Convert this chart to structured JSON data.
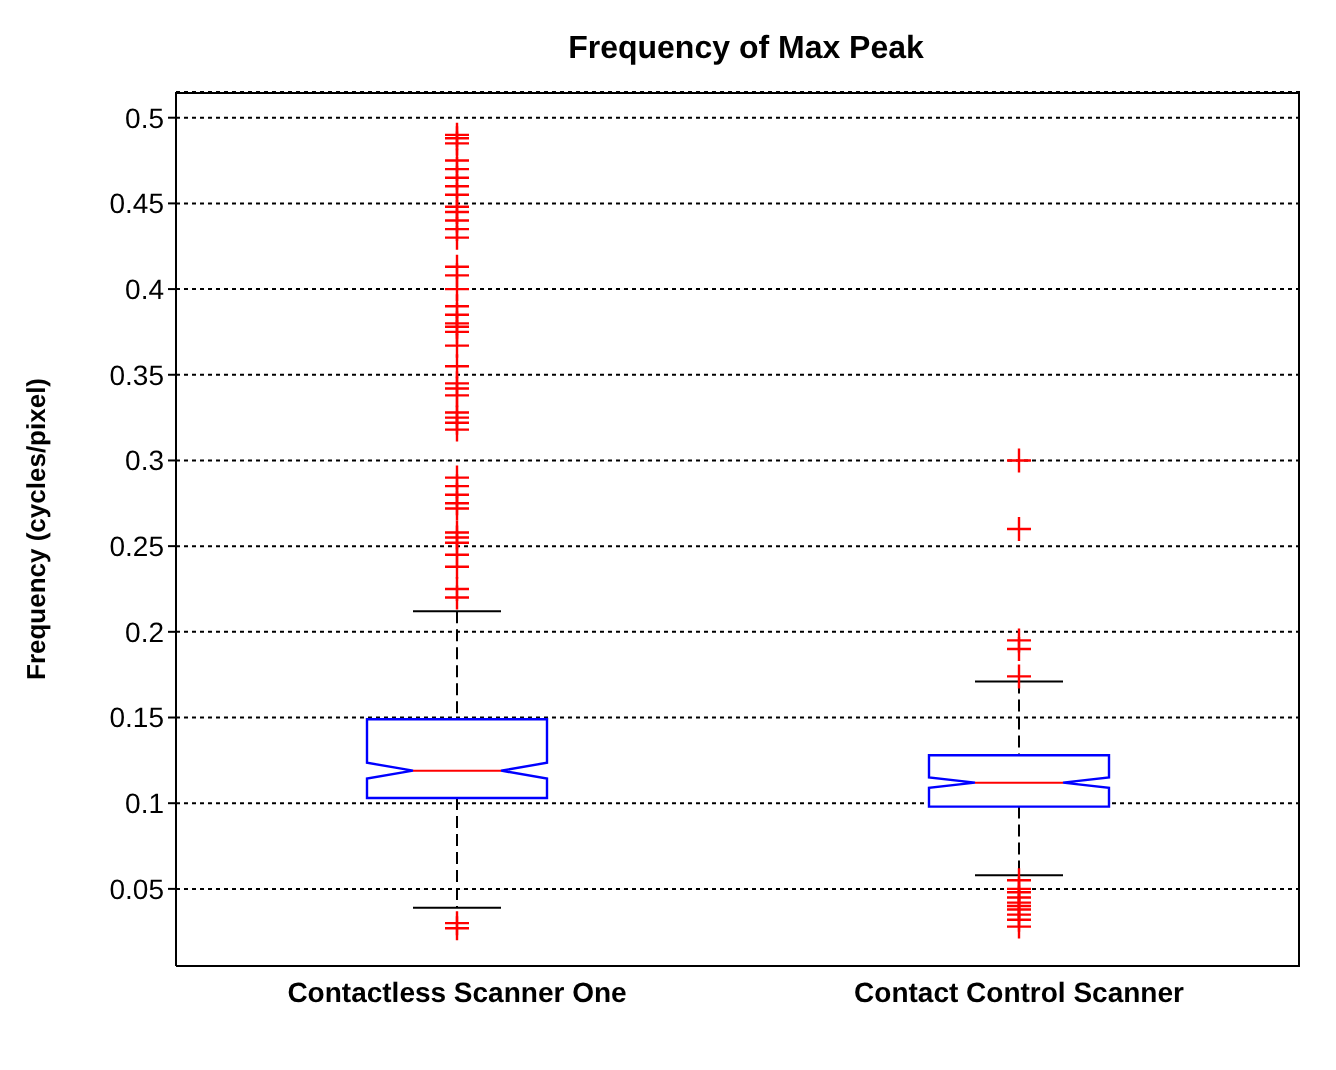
{
  "chart_data": {
    "type": "box",
    "title": "Frequency of Max Peak",
    "ylabel": "Frequency (cycles/pixel)",
    "categories": [
      "Contactless Scanner One",
      "Contact Control Scanner"
    ],
    "color": "#0000ff",
    "ylim": [
      0.005,
      0.515
    ],
    "yticks": [
      0.05,
      0.1,
      0.15,
      0.2,
      0.25,
      0.3,
      0.35,
      0.4,
      0.45,
      0.5
    ],
    "grid": "y",
    "boxes": [
      {
        "low": 0.039,
        "q1": 0.103,
        "median": 0.119,
        "q3": 0.149,
        "high": 0.212,
        "outliers": [
          0.03,
          0.027,
          0.22,
          0.225,
          0.238,
          0.245,
          0.252,
          0.255,
          0.258,
          0.272,
          0.275,
          0.28,
          0.285,
          0.29,
          0.318,
          0.322,
          0.325,
          0.328,
          0.338,
          0.342,
          0.345,
          0.355,
          0.367,
          0.375,
          0.378,
          0.38,
          0.385,
          0.39,
          0.4,
          0.408,
          0.413,
          0.43,
          0.435,
          0.44,
          0.445,
          0.448,
          0.455,
          0.46,
          0.465,
          0.47,
          0.475,
          0.485,
          0.488,
          0.49
        ]
      },
      {
        "low": 0.058,
        "q1": 0.098,
        "median": 0.112,
        "q3": 0.128,
        "high": 0.171,
        "outliers": [
          0.028,
          0.032,
          0.035,
          0.038,
          0.04,
          0.042,
          0.045,
          0.048,
          0.05,
          0.055,
          0.174,
          0.19,
          0.195,
          0.26,
          0.3
        ]
      }
    ]
  }
}
